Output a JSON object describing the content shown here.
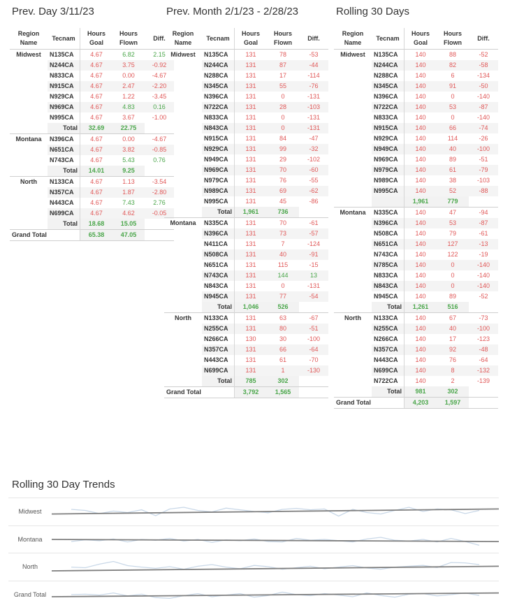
{
  "panels": {
    "prev_day": {
      "title": "Prev. Day 3/11/23",
      "headers": [
        "Region Name",
        "Tecnam",
        "Hours Goal",
        "Hours Flown",
        "Diff."
      ],
      "regions": [
        {
          "name": "Midwest",
          "rows": [
            [
              "N135CA",
              "4.67",
              "6.82",
              "2.15"
            ],
            [
              "N244CA",
              "4.67",
              "3.75",
              "-0.92"
            ],
            [
              "N833CA",
              "4.67",
              "0.00",
              "-4.67"
            ],
            [
              "N915CA",
              "4.67",
              "2.47",
              "-2.20"
            ],
            [
              "N929CA",
              "4.67",
              "1.22",
              "-3.45"
            ],
            [
              "N969CA",
              "4.67",
              "4.83",
              "0.16"
            ],
            [
              "N995CA",
              "4.67",
              "3.67",
              "-1.00"
            ]
          ],
          "total": [
            "Total",
            "32.69",
            "22.75",
            ""
          ]
        },
        {
          "name": "Montana",
          "rows": [
            [
              "N396CA",
              "4.67",
              "0.00",
              "-4.67"
            ],
            [
              "N651CA",
              "4.67",
              "3.82",
              "-0.85"
            ],
            [
              "N743CA",
              "4.67",
              "5.43",
              "0.76"
            ]
          ],
          "total": [
            "Total",
            "14.01",
            "9.25",
            ""
          ]
        },
        {
          "name": "North",
          "rows": [
            [
              "N133CA",
              "4.67",
              "1.13",
              "-3.54"
            ],
            [
              "N357CA",
              "4.67",
              "1.87",
              "-2.80"
            ],
            [
              "N443CA",
              "4.67",
              "7.43",
              "2.76"
            ],
            [
              "N699CA",
              "4.67",
              "4.62",
              "-0.05"
            ]
          ],
          "total": [
            "Total",
            "18.68",
            "15.05",
            ""
          ]
        }
      ],
      "grand_total": [
        "Grand Total",
        "65.38",
        "47.05",
        ""
      ]
    },
    "prev_month": {
      "title": "Prev. Month 2/1/23 - 2/28/23",
      "headers": [
        "Region Name",
        "Tecnam",
        "Hours Goal",
        "Hours Flown",
        "Diff."
      ],
      "regions": [
        {
          "name": "Midwest",
          "rows": [
            [
              "N135CA",
              "131",
              "78",
              "-53"
            ],
            [
              "N244CA",
              "131",
              "87",
              "-44"
            ],
            [
              "N288CA",
              "131",
              "17",
              "-114"
            ],
            [
              "N345CA",
              "131",
              "55",
              "-76"
            ],
            [
              "N396CA",
              "131",
              "0",
              "-131"
            ],
            [
              "N722CA",
              "131",
              "28",
              "-103"
            ],
            [
              "N833CA",
              "131",
              "0",
              "-131"
            ],
            [
              "N843CA",
              "131",
              "0",
              "-131"
            ],
            [
              "N915CA",
              "131",
              "84",
              "-47"
            ],
            [
              "N929CA",
              "131",
              "99",
              "-32"
            ],
            [
              "N949CA",
              "131",
              "29",
              "-102"
            ],
            [
              "N969CA",
              "131",
              "70",
              "-60"
            ],
            [
              "N979CA",
              "131",
              "76",
              "-55"
            ],
            [
              "N989CA",
              "131",
              "69",
              "-62"
            ],
            [
              "N995CA",
              "131",
              "45",
              "-86"
            ]
          ],
          "total": [
            "Total",
            "1,961",
            "736",
            ""
          ]
        },
        {
          "name": "Montana",
          "rows": [
            [
              "N335CA",
              "131",
              "70",
              "-61"
            ],
            [
              "N396CA",
              "131",
              "73",
              "-57"
            ],
            [
              "N411CA",
              "131",
              "7",
              "-124"
            ],
            [
              "N508CA",
              "131",
              "40",
              "-91"
            ],
            [
              "N651CA",
              "131",
              "115",
              "-15"
            ],
            [
              "N743CA",
              "131",
              "144",
              "13"
            ],
            [
              "N843CA",
              "131",
              "0",
              "-131"
            ],
            [
              "N945CA",
              "131",
              "77",
              "-54"
            ]
          ],
          "total": [
            "Total",
            "1,046",
            "526",
            ""
          ]
        },
        {
          "name": "North",
          "rows": [
            [
              "N133CA",
              "131",
              "63",
              "-67"
            ],
            [
              "N255CA",
              "131",
              "80",
              "-51"
            ],
            [
              "N266CA",
              "130",
              "30",
              "-100"
            ],
            [
              "N357CA",
              "131",
              "66",
              "-64"
            ],
            [
              "N443CA",
              "131",
              "61",
              "-70"
            ],
            [
              "N699CA",
              "131",
              "1",
              "-130"
            ]
          ],
          "total": [
            "Total",
            "785",
            "302",
            ""
          ]
        }
      ],
      "grand_total": [
        "Grand Total",
        "3,792",
        "1,565",
        ""
      ]
    },
    "rolling": {
      "title": "Rolling 30 Days",
      "headers": [
        "Region Name",
        "Tecnam",
        "Hours Goal",
        "Hours Flown",
        "Diff."
      ],
      "regions": [
        {
          "name": "Midwest",
          "rows": [
            [
              "N135CA",
              "140",
              "88",
              "-52"
            ],
            [
              "N244CA",
              "140",
              "82",
              "-58"
            ],
            [
              "N288CA",
              "140",
              "6",
              "-134"
            ],
            [
              "N345CA",
              "140",
              "91",
              "-50"
            ],
            [
              "N396CA",
              "140",
              "0",
              "-140"
            ],
            [
              "N722CA",
              "140",
              "53",
              "-87"
            ],
            [
              "N833CA",
              "140",
              "0",
              "-140"
            ],
            [
              "N915CA",
              "140",
              "66",
              "-74"
            ],
            [
              "N929CA",
              "140",
              "114",
              "-26"
            ],
            [
              "N949CA",
              "140",
              "40",
              "-100"
            ],
            [
              "N969CA",
              "140",
              "89",
              "-51"
            ],
            [
              "N979CA",
              "140",
              "61",
              "-79"
            ],
            [
              "N989CA",
              "140",
              "38",
              "-103"
            ],
            [
              "N995CA",
              "140",
              "52",
              "-88"
            ]
          ],
          "total": [
            "",
            "1,961",
            "779",
            ""
          ]
        },
        {
          "name": "Montana",
          "rows": [
            [
              "N335CA",
              "140",
              "47",
              "-94"
            ],
            [
              "N396CA",
              "140",
              "53",
              "-87"
            ],
            [
              "N508CA",
              "140",
              "79",
              "-61"
            ],
            [
              "N651CA",
              "140",
              "127",
              "-13"
            ],
            [
              "N743CA",
              "140",
              "122",
              "-19"
            ],
            [
              "N785CA",
              "140",
              "0",
              "-140"
            ],
            [
              "N833CA",
              "140",
              "0",
              "-140"
            ],
            [
              "N843CA",
              "140",
              "0",
              "-140"
            ],
            [
              "N945CA",
              "140",
              "89",
              "-52"
            ]
          ],
          "total": [
            "Total",
            "1,261",
            "516",
            ""
          ]
        },
        {
          "name": "North",
          "rows": [
            [
              "N133CA",
              "140",
              "67",
              "-73"
            ],
            [
              "N255CA",
              "140",
              "40",
              "-100"
            ],
            [
              "N266CA",
              "140",
              "17",
              "-123"
            ],
            [
              "N357CA",
              "140",
              "92",
              "-48"
            ],
            [
              "N443CA",
              "140",
              "76",
              "-64"
            ],
            [
              "N699CA",
              "140",
              "8",
              "-132"
            ],
            [
              "N722CA",
              "140",
              "2",
              "-139"
            ]
          ],
          "total": [
            "Total",
            "981",
            "302",
            ""
          ]
        }
      ],
      "grand_total": [
        "Grand Total",
        "4,203",
        "1,597",
        ""
      ]
    }
  },
  "trends": {
    "title": "Rolling 30 Day Trends",
    "rows": [
      {
        "label": "Midwest",
        "values": [
          60,
          55,
          40,
          52,
          45,
          58,
          30,
          62,
          70,
          55,
          48,
          66,
          58,
          50,
          44,
          60,
          65,
          58,
          62,
          28,
          60,
          45,
          38,
          55,
          70,
          50,
          62,
          58,
          40,
          55
        ],
        "trend": [
          38,
          62
        ]
      },
      {
        "label": "Montana",
        "values": [
          40,
          48,
          44,
          52,
          38,
          50,
          46,
          55,
          42,
          50,
          36,
          48,
          44,
          52,
          40,
          38,
          55,
          46,
          50,
          44,
          38,
          52,
          60,
          46,
          42,
          50,
          38,
          55,
          40,
          22
        ],
        "trend": [
          50,
          40
        ]
      },
      {
        "label": "North",
        "values": [
          48,
          45,
          62,
          75,
          55,
          48,
          42,
          50,
          38,
          52,
          60,
          48,
          40,
          56,
          50,
          38,
          45,
          52,
          40,
          48,
          55,
          44,
          38,
          48,
          52,
          56,
          46,
          70,
          68,
          60
        ],
        "trend": [
          30,
          52
        ]
      },
      {
        "label": "Grand Total",
        "values": [
          50,
          52,
          48,
          58,
          44,
          52,
          36,
          32,
          45,
          55,
          40,
          48,
          55,
          38,
          46,
          62,
          50,
          45,
          55,
          48,
          40,
          58,
          46,
          38,
          52,
          55,
          44,
          50,
          58,
          46
        ],
        "trend": [
          40,
          58
        ]
      }
    ],
    "colors": {
      "line": "#c9d8e8",
      "trend": "#7f7f7f",
      "positive": "#4aa64a",
      "negative": "#e05757"
    }
  }
}
